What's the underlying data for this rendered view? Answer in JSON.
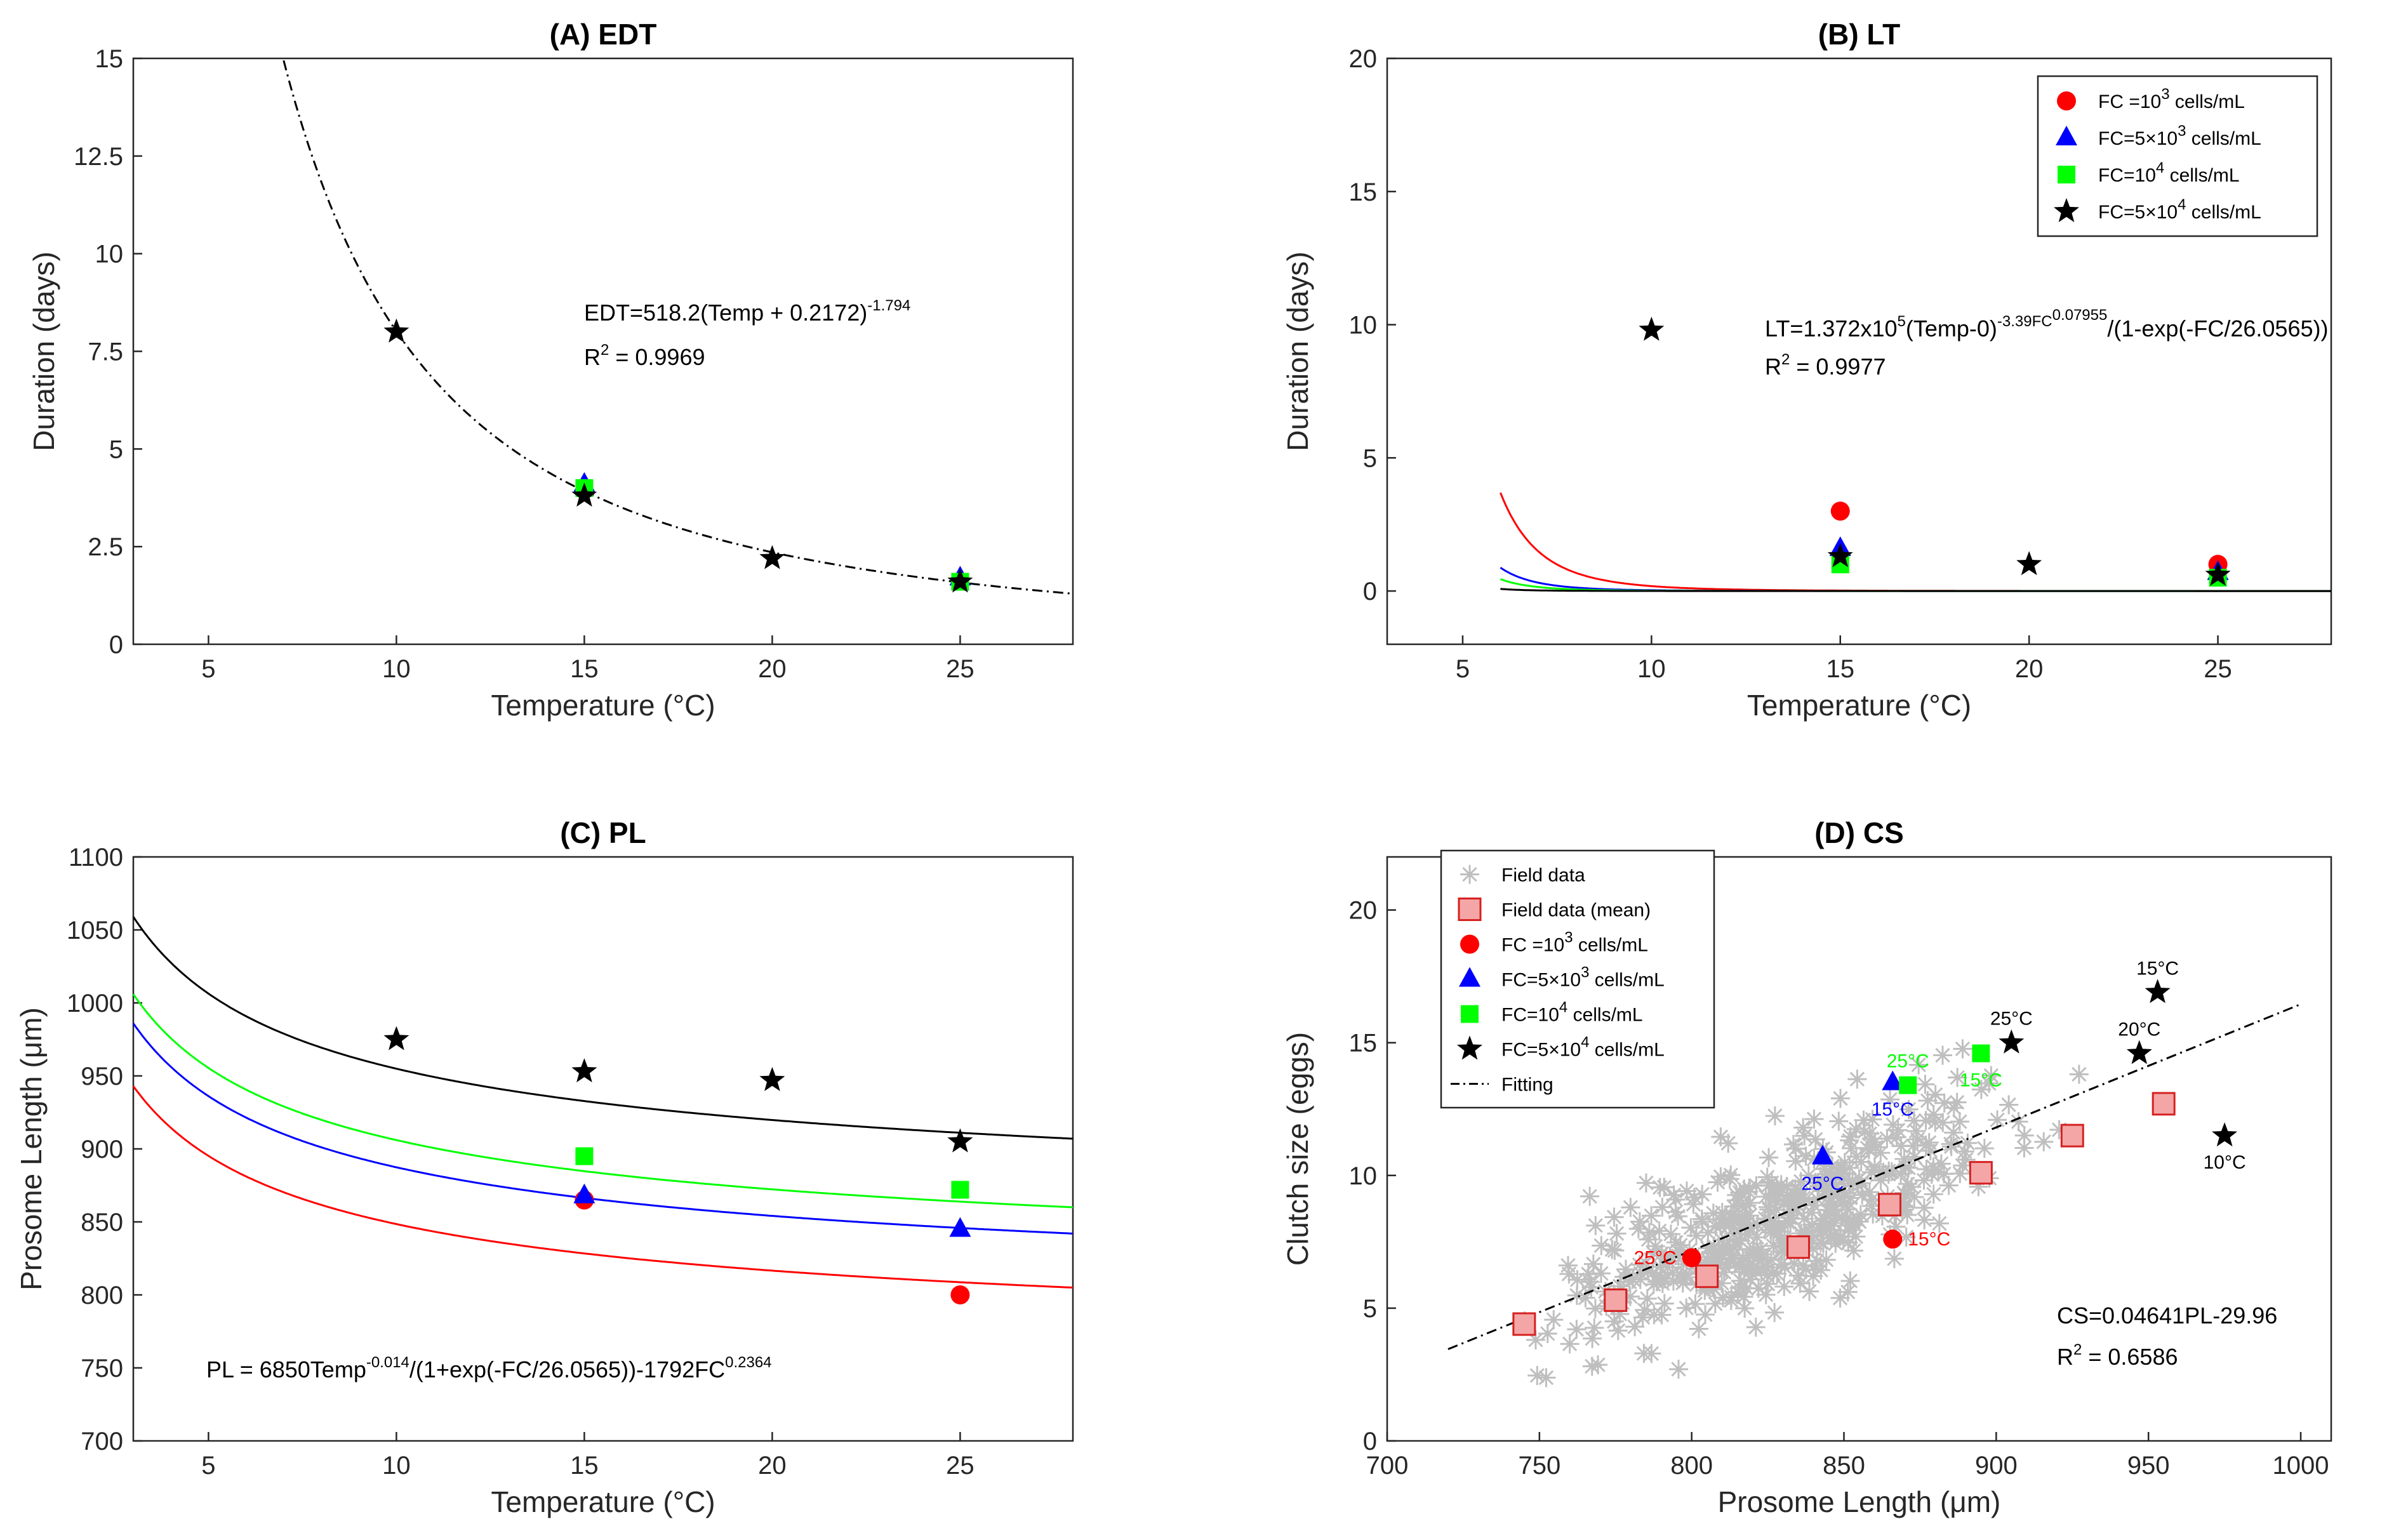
{
  "figure": {
    "chart_data": [
      {
        "id": "A",
        "type": "line",
        "title": "(A)   EDT",
        "xlabel": "Temperature (°C)",
        "ylabel": "Duration (days)",
        "xlim": [
          3,
          28
        ],
        "ylim": [
          0,
          15
        ],
        "xticks": [
          5,
          10,
          15,
          20,
          25
        ],
        "yticks": [
          0,
          2.5,
          5,
          7.5,
          10,
          12.5,
          15
        ],
        "ytick_labels": [
          "0",
          "2.5",
          "5",
          "7.5",
          "10",
          "12.5",
          "15"
        ],
        "equation_main": "EDT=518.2(Temp + 0.2172)",
        "equation_sup": "-1.794",
        "r2_label": "R",
        "r2_sup": "2",
        "r2_value": " = 0.9969",
        "fit": {
          "form": "power",
          "a": 518.2,
          "c": 0.2172,
          "b": -1.794,
          "style": "dashdot",
          "color": "#000000"
        },
        "series": [
          {
            "name": "FC=5×10^3 cells/mL",
            "marker": "triangle",
            "color": "#0000ff",
            "x": [
              15,
              25
            ],
            "y": [
              4.1,
              1.7
            ]
          },
          {
            "name": "FC=10^4 cells/mL",
            "marker": "square",
            "color": "#00ff00",
            "x": [
              15,
              25
            ],
            "y": [
              4.0,
              1.6
            ]
          },
          {
            "name": "FC=5×10^4 cells/mL",
            "marker": "star",
            "color": "#000000",
            "x": [
              10,
              15,
              20,
              25
            ],
            "y": [
              8.0,
              3.8,
              2.2,
              1.6
            ]
          }
        ]
      },
      {
        "id": "B",
        "type": "line",
        "title": "(B)   LT",
        "xlabel": "Temperature (°C)",
        "ylabel": "Duration (days)",
        "xlim": [
          3,
          28
        ],
        "ylim": [
          -2,
          20
        ],
        "xticks": [
          5,
          10,
          15,
          20,
          25
        ],
        "yticks": [
          0,
          5,
          10,
          15,
          20
        ],
        "equation_main": "LT=1.372x10",
        "equation_sup1": "5",
        "equation_mid": "(Temp-0)",
        "equation_sup2": "-3.39FC",
        "equation_sup3": "0.07955",
        "equation_tail": "/(1-exp(-FC/26.0565))",
        "r2_label": "R",
        "r2_sup": "2",
        "r2_value": " = 0.9977",
        "legend": {
          "position": "top-right",
          "entries": [
            {
              "pre": "FC =10",
              "sup": "3",
              "post": " cells/mL",
              "marker": "circle",
              "color": "#ff0000"
            },
            {
              "pre": "FC=5×10",
              "sup": "3",
              "post": " cells/mL",
              "marker": "triangle",
              "color": "#0000ff"
            },
            {
              "pre": "FC=10",
              "sup": "4",
              "post": " cells/mL",
              "marker": "square",
              "color": "#00ff00"
            },
            {
              "pre": "FC=5×10",
              "sup": "4",
              "post": " cells/mL",
              "marker": "star",
              "color": "#000000"
            }
          ]
        },
        "curves": [
          {
            "fc": 1000,
            "color": "#ff0000"
          },
          {
            "fc": 5000,
            "color": "#0000ff"
          },
          {
            "fc": 10000,
            "color": "#00ff00"
          },
          {
            "fc": 50000,
            "color": "#000000"
          }
        ],
        "series": [
          {
            "name": "FC =10^3 cells/mL",
            "marker": "circle",
            "color": "#ff0000",
            "x": [
              15,
              25
            ],
            "y": [
              3.0,
              1.0
            ]
          },
          {
            "name": "FC=5×10^3 cells/mL",
            "marker": "triangle",
            "color": "#0000ff",
            "x": [
              15,
              25
            ],
            "y": [
              1.6,
              0.7
            ]
          },
          {
            "name": "FC=10^4 cells/mL",
            "marker": "square",
            "color": "#00ff00",
            "x": [
              15,
              25
            ],
            "y": [
              1.0,
              0.5
            ]
          },
          {
            "name": "FC=5×10^4 cells/mL",
            "marker": "star",
            "color": "#000000",
            "x": [
              10,
              15,
              20,
              25
            ],
            "y": [
              9.8,
              1.3,
              1.0,
              0.6
            ]
          }
        ]
      },
      {
        "id": "C",
        "type": "line",
        "title": "(C)   PL",
        "xlabel": "Temperature (°C)",
        "ylabel": "Prosome Length (μm)",
        "xlim": [
          3,
          28
        ],
        "ylim": [
          700,
          1100
        ],
        "xticks": [
          5,
          10,
          15,
          20,
          25
        ],
        "yticks": [
          700,
          750,
          800,
          850,
          900,
          950,
          1000,
          1050,
          1100
        ],
        "equation_main": "PL = 6850Temp",
        "equation_sup1": "-0.014",
        "equation_mid": "/(1+exp(-FC/26.0565))-1792FC",
        "equation_sup2": "0.2364",
        "curves": [
          {
            "fc": 1000,
            "color": "#ff0000"
          },
          {
            "fc": 5000,
            "color": "#0000ff"
          },
          {
            "fc": 10000,
            "color": "#00ff00"
          },
          {
            "fc": 50000,
            "color": "#000000"
          }
        ],
        "series": [
          {
            "name": "FC =10^3 cells/mL",
            "marker": "circle",
            "color": "#ff0000",
            "x": [
              15,
              25
            ],
            "y": [
              865,
              800
            ]
          },
          {
            "name": "FC=5×10^3 cells/mL",
            "marker": "triangle",
            "color": "#0000ff",
            "x": [
              15,
              25
            ],
            "y": [
              868,
              845
            ]
          },
          {
            "name": "FC=10^4 cells/mL",
            "marker": "square",
            "color": "#00ff00",
            "x": [
              15,
              25
            ],
            "y": [
              895,
              872
            ]
          },
          {
            "name": "FC=5×10^4 cells/mL",
            "marker": "star",
            "color": "#000000",
            "x": [
              10,
              15,
              20,
              25
            ],
            "y": [
              975,
              953,
              947,
              905
            ]
          }
        ]
      },
      {
        "id": "D",
        "type": "scatter",
        "title": "(D)   CS",
        "xlabel": "Prosome Length (μm)",
        "ylabel": "Clutch size (eggs)",
        "xlim": [
          700,
          1010
        ],
        "ylim": [
          0,
          22
        ],
        "xticks": [
          700,
          750,
          800,
          850,
          900,
          950,
          1000
        ],
        "yticks": [
          0,
          5,
          10,
          15,
          20
        ],
        "equation_main": "CS=0.04641PL-29.96",
        "r2_label": "R",
        "r2_sup": "2",
        "r2_value": " = 0.6586",
        "fit": {
          "slope": 0.04641,
          "intercept": -29.96,
          "x_range": [
            720,
            1000
          ],
          "style": "dashdot",
          "color": "#000000"
        },
        "legend": {
          "position": "top-left",
          "entries": [
            {
              "pre": "Field data",
              "sup": "",
              "post": "",
              "marker": "asterisk",
              "color": "#bfbfbf"
            },
            {
              "pre": "Field data (mean)",
              "sup": "",
              "post": "",
              "marker": "bigsquare",
              "color": "#f4a6a6"
            },
            {
              "pre": "FC =10",
              "sup": "3",
              "post": " cells/mL",
              "marker": "circle",
              "color": "#ff0000"
            },
            {
              "pre": "FC=5×10",
              "sup": "3",
              "post": " cells/mL",
              "marker": "triangle",
              "color": "#0000ff"
            },
            {
              "pre": "FC=10",
              "sup": "4",
              "post": " cells/mL",
              "marker": "square",
              "color": "#00ff00"
            },
            {
              "pre": "FC=5×10",
              "sup": "4",
              "post": " cells/mL",
              "marker": "star",
              "color": "#000000"
            },
            {
              "pre": "Fitting",
              "sup": "",
              "post": "",
              "marker": "dashdot",
              "color": "#000000"
            }
          ]
        },
        "field_data": {
          "name": "Field data",
          "count": 520,
          "x_range": [
            745,
            990
          ],
          "mean_slope": 0.04641,
          "mean_intercept": -29.96,
          "spread": 1.6,
          "color": "#bfbfbf",
          "seed": 7
        },
        "field_mean": {
          "name": "Field data (mean)",
          "color": "#f4a6a6",
          "edge": "#d62020",
          "x": [
            745,
            775,
            805,
            835,
            865,
            895,
            925,
            955
          ],
          "y": [
            4.4,
            5.3,
            6.2,
            7.3,
            8.9,
            10.1,
            11.5,
            12.7
          ]
        },
        "series": [
          {
            "name": "FC =10^3 cells/mL",
            "marker": "circle",
            "color": "#ff0000",
            "x": [
              800,
              866
            ],
            "y": [
              6.9,
              7.6
            ],
            "labels": [
              "25°C",
              "15°C"
            ],
            "label_side": [
              "left",
              "right"
            ]
          },
          {
            "name": "FC=5×10^3 cells/mL",
            "marker": "triangle",
            "color": "#0000ff",
            "x": [
              843,
              866
            ],
            "y": [
              10.7,
              13.5
            ],
            "labels": [
              "25°C",
              "15°C"
            ],
            "label_side": [
              "below",
              "below"
            ]
          },
          {
            "name": "FC=10^4 cells/mL",
            "marker": "square",
            "color": "#00ff00",
            "x": [
              871,
              895
            ],
            "y": [
              13.4,
              14.6
            ],
            "labels": [
              "25°C",
              "15°C"
            ],
            "label_side": [
              "above",
              "below"
            ]
          },
          {
            "name": "FC=5×10^4 cells/mL",
            "marker": "star",
            "color": "#000000",
            "x": [
              905,
              947,
              953,
              975
            ],
            "y": [
              15.0,
              14.6,
              16.9,
              11.5
            ],
            "labels": [
              "25°C",
              "20°C",
              "15°C",
              "10°C"
            ],
            "label_side": [
              "above",
              "above",
              "above",
              "below"
            ]
          }
        ]
      }
    ]
  }
}
